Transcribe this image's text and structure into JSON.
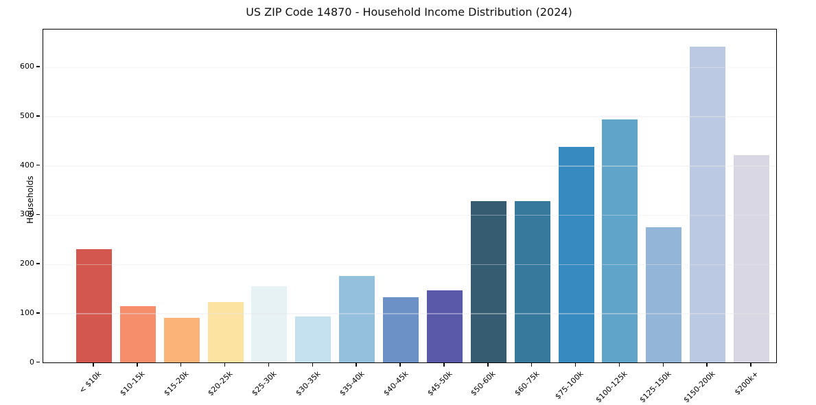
{
  "chart_data": {
    "type": "bar",
    "title": "US ZIP Code 14870 - Household Income Distribution (2024)",
    "xlabel": "",
    "ylabel": "Households",
    "ylim": [
      0,
      676
    ],
    "yticks": [
      0,
      100,
      200,
      300,
      400,
      500,
      600
    ],
    "grid": "horizontal",
    "legend": "none",
    "categories": [
      "< $10k",
      "$10-15k",
      "$15-20k",
      "$20-25k",
      "$25-30k",
      "$30-35k",
      "$35-40k",
      "$40-45k",
      "$45-50k",
      "$50-60k",
      "$60-75k",
      "$75-100k",
      "$100-125k",
      "$125-150k",
      "$150-200k",
      "$200k+"
    ],
    "values": [
      230,
      114,
      90,
      122,
      155,
      94,
      176,
      133,
      146,
      328,
      328,
      438,
      494,
      275,
      641,
      421
    ],
    "bar_colors": [
      "#d4574f",
      "#f68d6b",
      "#fbb377",
      "#fde3a1",
      "#e7f2f4",
      "#c5e0ee",
      "#94c0dd",
      "#6b91c6",
      "#5a58a9",
      "#365c72",
      "#37789d",
      "#378abf",
      "#60a5c9",
      "#92b5d8",
      "#bcc9e2",
      "#d8d7e3"
    ]
  },
  "colors": {
    "background": "#ffffff",
    "grid": "#e9e9ee",
    "spine": "#000000",
    "text": "#000000"
  }
}
